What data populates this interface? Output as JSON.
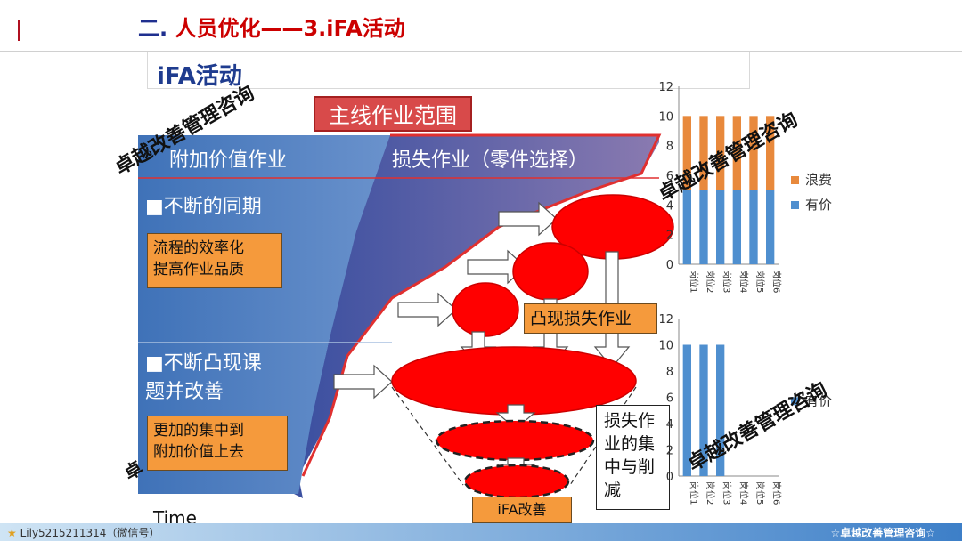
{
  "header": {
    "title_prefix": "二.",
    "title_red": "人员优化——3.iFA活动"
  },
  "diagram": {
    "ifa_title": "iFA活动",
    "main_range": "主线作业范围",
    "value_added": "附加价值作业",
    "loss_work": "损失作业（零件选择）",
    "continuous_sync": "■不断的同期",
    "box_efficiency": [
      "流程的效率化",
      "提高作业品质"
    ],
    "continuous_reveal": [
      "■不断凸现课",
      "题并改善"
    ],
    "box_focus": [
      "更加的集中到",
      "附加价值上去"
    ],
    "reveal_loss": "凸现损失作业",
    "loss_focus": [
      "损失作",
      "业的集",
      "中与削",
      "减"
    ],
    "ifa_improve": "iFA改善",
    "time_label": "Time"
  },
  "watermark": "卓越改善管理咨询",
  "chart_data": [
    {
      "type": "bar",
      "stacked": true,
      "categories": [
        "岗位1",
        "岗位2",
        "岗位3",
        "岗位4",
        "岗位5",
        "岗位6"
      ],
      "series": [
        {
          "name": "有价",
          "values": [
            5,
            5,
            5,
            5,
            5,
            5
          ],
          "color": "#4f8fcf"
        },
        {
          "name": "浪费",
          "values": [
            5,
            5,
            5,
            5,
            5,
            5
          ],
          "color": "#e8893c"
        }
      ],
      "yticks": [
        0,
        2,
        4,
        6,
        8,
        10,
        12
      ],
      "ylim": [
        0,
        12
      ],
      "legend": "right"
    },
    {
      "type": "bar",
      "stacked": true,
      "categories": [
        "岗位1",
        "岗位2",
        "岗位3",
        "岗位4",
        "岗位5",
        "岗位6"
      ],
      "series": [
        {
          "name": "有价",
          "values": [
            10,
            10,
            10,
            0,
            0,
            0
          ],
          "color": "#4f8fcf"
        }
      ],
      "yticks": [
        0,
        2,
        4,
        6,
        8,
        10,
        12
      ],
      "ylim": [
        0,
        12
      ],
      "legend": "right"
    }
  ],
  "footer": {
    "left": "Lily5215211314（微信号）",
    "right": "☆卓越改善管理咨询☆"
  }
}
